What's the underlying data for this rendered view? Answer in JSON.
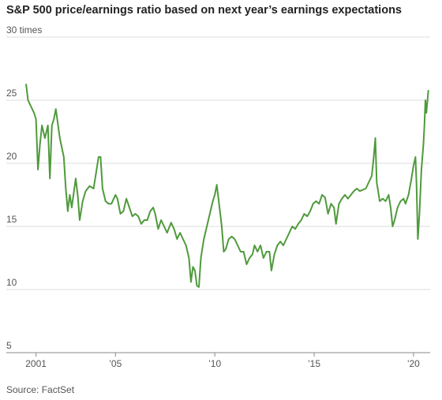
{
  "chart_data": {
    "type": "line",
    "title": "S&P 500 price/earnings ratio based on next year’s earnings expectations",
    "source": "Source: FactSet",
    "color": "#4f9a3c",
    "grid": true,
    "ylim": [
      5,
      30
    ],
    "yticks": [
      5,
      10,
      15,
      20,
      25,
      {
        "value": 30,
        "label": "30 times"
      }
    ],
    "xlim": [
      2000.5,
      2020.8
    ],
    "xticks": [
      2001,
      {
        "value": 2005,
        "label": "’05"
      },
      {
        "value": 2010,
        "label": "’10"
      },
      {
        "value": 2015,
        "label": "’15"
      },
      {
        "value": 2020,
        "label": "’20"
      }
    ],
    "x": [
      2000.5,
      2000.6,
      2000.75,
      2000.9,
      2001.0,
      2001.1,
      2001.2,
      2001.3,
      2001.45,
      2001.6,
      2001.7,
      2001.8,
      2001.9,
      2002.0,
      2002.2,
      2002.4,
      2002.5,
      2002.6,
      2002.7,
      2002.8,
      2003.0,
      2003.1,
      2003.2,
      2003.35,
      2003.5,
      2003.7,
      2003.9,
      2004.0,
      2004.15,
      2004.25,
      2004.35,
      2004.5,
      2004.65,
      2004.8,
      2005.0,
      2005.1,
      2005.25,
      2005.4,
      2005.55,
      2005.7,
      2005.85,
      2006.0,
      2006.15,
      2006.3,
      2006.45,
      2006.6,
      2006.75,
      2006.9,
      2007.0,
      2007.15,
      2007.3,
      2007.45,
      2007.6,
      2007.8,
      2007.95,
      2008.1,
      2008.25,
      2008.4,
      2008.55,
      2008.7,
      2008.8,
      2008.9,
      2009.0,
      2009.1,
      2009.2,
      2009.3,
      2009.45,
      2009.6,
      2009.75,
      2009.9,
      2010.0,
      2010.1,
      2010.2,
      2010.35,
      2010.45,
      2010.55,
      2010.7,
      2010.85,
      2011.0,
      2011.15,
      2011.3,
      2011.45,
      2011.6,
      2011.75,
      2011.9,
      2012.0,
      2012.15,
      2012.3,
      2012.45,
      2012.6,
      2012.75,
      2012.85,
      2013.0,
      2013.15,
      2013.3,
      2013.45,
      2013.6,
      2013.75,
      2013.9,
      2014.05,
      2014.2,
      2014.35,
      2014.5,
      2014.65,
      2014.8,
      2014.95,
      2015.1,
      2015.25,
      2015.4,
      2015.55,
      2015.7,
      2015.85,
      2016.0,
      2016.1,
      2016.25,
      2016.4,
      2016.55,
      2016.7,
      2016.85,
      2017.0,
      2017.15,
      2017.3,
      2017.45,
      2017.6,
      2017.75,
      2017.9,
      2018.0,
      2018.08,
      2018.15,
      2018.3,
      2018.45,
      2018.6,
      2018.75,
      2018.85,
      2018.95,
      2019.05,
      2019.2,
      2019.35,
      2019.5,
      2019.6,
      2019.75,
      2019.9,
      2020.0,
      2020.1,
      2020.15,
      2020.22,
      2020.3,
      2020.4,
      2020.5,
      2020.55,
      2020.6,
      2020.65,
      2020.75
    ],
    "values": [
      26.3,
      25.0,
      24.5,
      24.0,
      23.5,
      19.5,
      21.5,
      23.0,
      22.0,
      23.0,
      18.8,
      23.0,
      23.5,
      24.3,
      22.0,
      20.5,
      18.0,
      16.2,
      17.5,
      16.5,
      18.8,
      17.5,
      15.5,
      17.0,
      17.8,
      18.2,
      18.0,
      19.0,
      20.5,
      20.5,
      18.0,
      17.0,
      16.8,
      16.8,
      17.5,
      17.2,
      16.0,
      16.2,
      17.2,
      16.5,
      15.8,
      16.0,
      15.8,
      15.2,
      15.5,
      15.5,
      16.2,
      16.5,
      16.0,
      14.8,
      15.5,
      15.0,
      14.5,
      15.3,
      14.8,
      14.0,
      14.5,
      14.0,
      13.5,
      12.5,
      10.6,
      11.8,
      11.5,
      10.3,
      10.2,
      12.5,
      14.0,
      15.0,
      16.0,
      17.0,
      17.5,
      18.3,
      17.0,
      15.0,
      13.0,
      13.2,
      14.0,
      14.2,
      14.0,
      13.5,
      13.0,
      13.0,
      12.0,
      12.5,
      12.8,
      13.5,
      13.0,
      13.5,
      12.5,
      13.0,
      13.0,
      11.5,
      12.8,
      13.5,
      13.8,
      13.5,
      14.0,
      14.5,
      15.0,
      14.8,
      15.2,
      15.5,
      16.0,
      15.8,
      16.2,
      16.8,
      17.0,
      16.8,
      17.5,
      17.3,
      16.0,
      16.8,
      16.5,
      15.2,
      16.8,
      17.2,
      17.5,
      17.2,
      17.5,
      17.8,
      18.0,
      17.8,
      17.9,
      18.0,
      18.5,
      19.0,
      20.5,
      22.0,
      18.5,
      17.0,
      17.2,
      17.0,
      17.5,
      16.5,
      15.0,
      15.5,
      16.5,
      17.0,
      17.2,
      16.8,
      17.5,
      18.8,
      19.8,
      20.5,
      18.5,
      14.0,
      16.0,
      19.5,
      21.5,
      23.0,
      25.0,
      24.0,
      25.8
    ]
  }
}
